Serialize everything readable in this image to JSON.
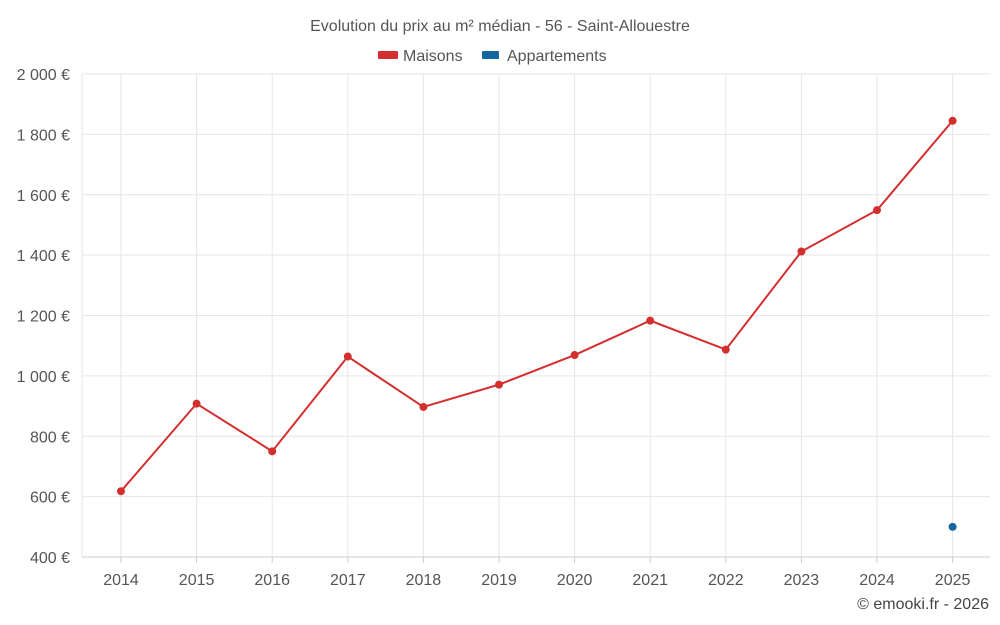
{
  "chart_data": {
    "type": "line",
    "title": "Evolution du prix au m² médian - 56 - Saint-Allouestre",
    "categories": [
      "2014",
      "2015",
      "2016",
      "2017",
      "2018",
      "2019",
      "2020",
      "2021",
      "2022",
      "2023",
      "2024",
      "2025"
    ],
    "series": [
      {
        "name": "Maisons",
        "color": "#d32f2f",
        "values": [
          618,
          908,
          750,
          1064,
          897,
          971,
          1069,
          1183,
          1087,
          1412,
          1549,
          1845
        ]
      },
      {
        "name": "Appartements",
        "color": "#1565a0",
        "values": [
          null,
          null,
          null,
          null,
          null,
          null,
          null,
          null,
          null,
          null,
          null,
          500
        ]
      }
    ],
    "ylim": [
      400,
      2000
    ],
    "yticks": [
      400,
      600,
      800,
      1000,
      1200,
      1400,
      1600,
      1800,
      2000
    ],
    "ytick_labels": [
      "400 €",
      "600 €",
      "800 €",
      "1 000 €",
      "1 200 €",
      "1 400 €",
      "1 600 €",
      "1 800 €",
      "2 000 €"
    ],
    "legend_position": "top-center",
    "grid": true,
    "xlabel": "",
    "ylabel": ""
  },
  "credit": "© emooki.fr - 2026"
}
